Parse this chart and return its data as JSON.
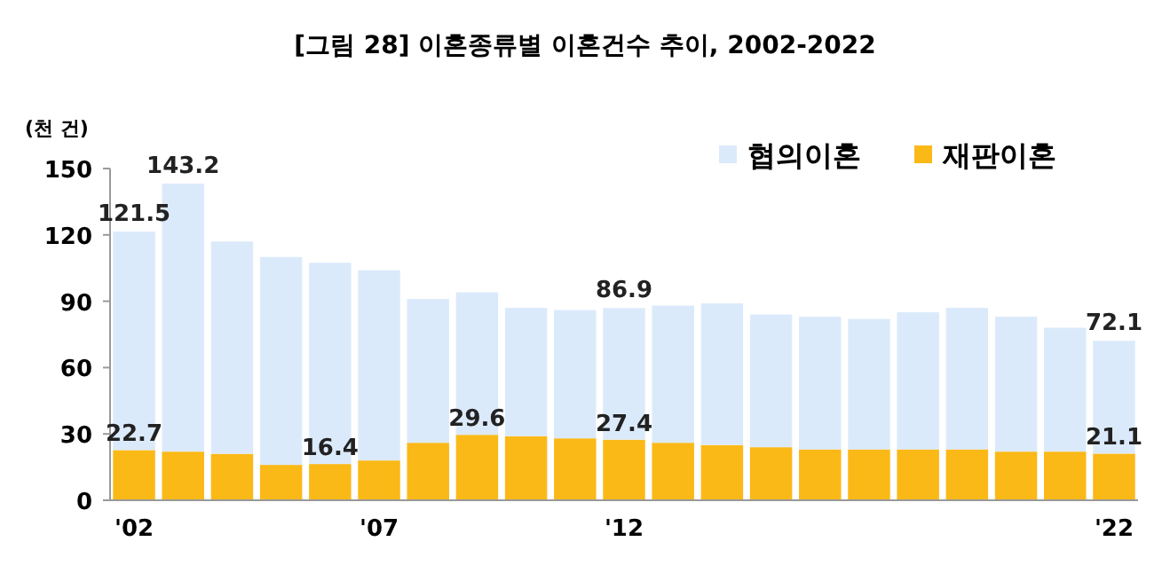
{
  "chart_data": {
    "type": "bar",
    "title": "[그림 28] 이혼종류별 이혼건수 추이, 2002-2022",
    "ylabel": "(천 건)",
    "categories": [
      "'02",
      null,
      null,
      null,
      null,
      "'07",
      null,
      null,
      null,
      null,
      "'12",
      null,
      null,
      null,
      null,
      null,
      null,
      null,
      null,
      null,
      "'22"
    ],
    "stacked": true,
    "ylim": [
      0,
      150
    ],
    "yticks": [
      0,
      30,
      60,
      90,
      120,
      150
    ],
    "legend": "top right",
    "series": [
      {
        "name": "재판이혼",
        "color": "#fbb917",
        "values": [
          22.7,
          22,
          21,
          16,
          16.4,
          18,
          26,
          29.6,
          29,
          28,
          27.4,
          26,
          25,
          24,
          23,
          23,
          23,
          23,
          22,
          22,
          21.1
        ],
        "value_labels": [
          "22.7",
          null,
          null,
          null,
          "16.4",
          null,
          null,
          "29.6",
          null,
          null,
          "27.4",
          null,
          null,
          null,
          null,
          null,
          null,
          null,
          null,
          null,
          "21.1"
        ]
      },
      {
        "name": "협의이혼",
        "color": "#dbeafb",
        "values": [
          98.8,
          121.2,
          96,
          94,
          91,
          86,
          65,
          64.4,
          58,
          58,
          59.5,
          62,
          64,
          60,
          60,
          59,
          62,
          64,
          61,
          56,
          51.0
        ]
      }
    ],
    "totals": [
      "121.5",
      "143.2",
      null,
      null,
      null,
      null,
      null,
      null,
      null,
      null,
      "86.9",
      null,
      null,
      null,
      null,
      null,
      null,
      null,
      null,
      null,
      "72.1"
    ]
  }
}
